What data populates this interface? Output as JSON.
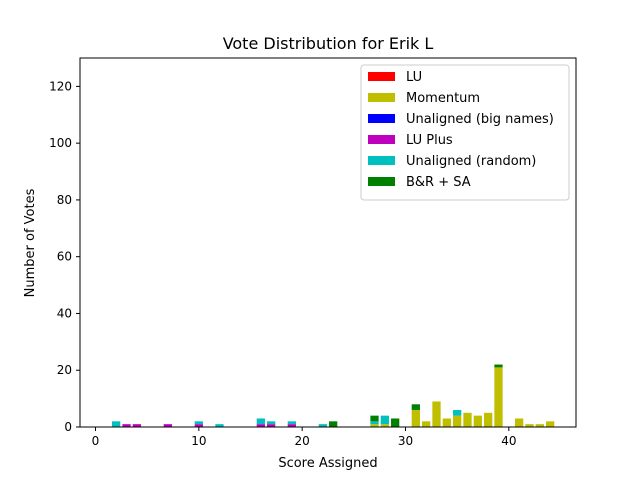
{
  "chart_data": {
    "type": "bar",
    "stacked": true,
    "title": "Vote Distribution for Erik L",
    "xlabel": "Score Assigned",
    "ylabel": "Number of Votes",
    "xlim": [
      -1.5,
      46.5
    ],
    "ylim": [
      0,
      130
    ],
    "xticks": [
      0,
      10,
      20,
      30,
      40
    ],
    "yticks": [
      0,
      20,
      40,
      60,
      80,
      100,
      120
    ],
    "grid": false,
    "legend_position": "top-right",
    "series": [
      {
        "name": "LU",
        "color": "#ff0000",
        "points": []
      },
      {
        "name": "Momentum",
        "color": "#bfbf00",
        "points": [
          {
            "x": 27,
            "y": 1
          },
          {
            "x": 28,
            "y": 1
          },
          {
            "x": 31,
            "y": 6
          },
          {
            "x": 32,
            "y": 2
          },
          {
            "x": 33,
            "y": 9
          },
          {
            "x": 34,
            "y": 3
          },
          {
            "x": 35,
            "y": 4
          },
          {
            "x": 36,
            "y": 5
          },
          {
            "x": 37,
            "y": 4
          },
          {
            "x": 38,
            "y": 5
          },
          {
            "x": 39,
            "y": 21
          },
          {
            "x": 41,
            "y": 3
          },
          {
            "x": 42,
            "y": 1
          },
          {
            "x": 43,
            "y": 1
          },
          {
            "x": 44,
            "y": 2
          }
        ]
      },
      {
        "name": "Unaligned (big names)",
        "color": "#0000ff",
        "points": []
      },
      {
        "name": "LU Plus",
        "color": "#bf00bf",
        "points": [
          {
            "x": 3,
            "y": 1
          },
          {
            "x": 4,
            "y": 1
          },
          {
            "x": 7,
            "y": 1
          },
          {
            "x": 10,
            "y": 1
          },
          {
            "x": 16,
            "y": 1
          },
          {
            "x": 17,
            "y": 1
          },
          {
            "x": 19,
            "y": 1
          }
        ]
      },
      {
        "name": "Unaligned (random)",
        "color": "#00bfbf",
        "points": [
          {
            "x": 2,
            "y": 2
          },
          {
            "x": 10,
            "y": 1
          },
          {
            "x": 12,
            "y": 1
          },
          {
            "x": 16,
            "y": 2
          },
          {
            "x": 17,
            "y": 1
          },
          {
            "x": 19,
            "y": 1
          },
          {
            "x": 22,
            "y": 1
          },
          {
            "x": 27,
            "y": 1
          },
          {
            "x": 28,
            "y": 3
          },
          {
            "x": 35,
            "y": 2
          }
        ]
      },
      {
        "name": "B&R + SA",
        "color": "#008000",
        "points": [
          {
            "x": 23,
            "y": 2
          },
          {
            "x": 27,
            "y": 2
          },
          {
            "x": 29,
            "y": 3
          },
          {
            "x": 31,
            "y": 2
          },
          {
            "x": 39,
            "y": 1
          }
        ]
      }
    ]
  }
}
